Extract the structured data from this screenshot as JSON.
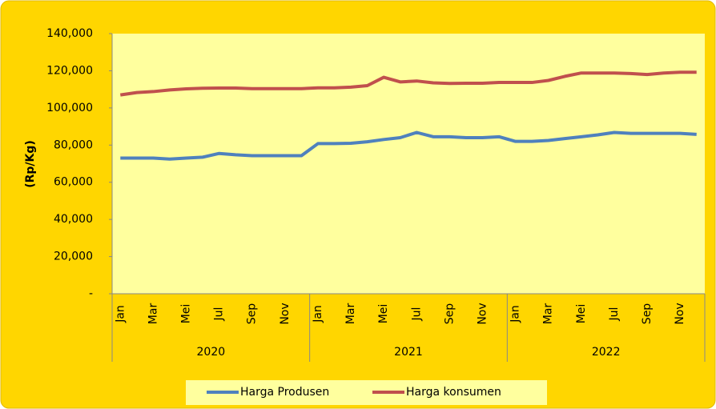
{
  "chart_data": {
    "type": "line",
    "ylabel": "(Rp/Kg)",
    "categories": [
      "Jan",
      null,
      "Mar",
      null,
      "Mei",
      null,
      "Jul",
      null,
      "Sep",
      null,
      "Nov",
      null,
      "Jan",
      null,
      "Mar",
      null,
      "Mei",
      null,
      "Jul",
      null,
      "Sep",
      null,
      "Nov",
      null,
      "Jan",
      null,
      "Mar",
      null,
      "Mei",
      null,
      "Jul",
      null,
      "Sep",
      null,
      "Nov",
      null
    ],
    "years": [
      "2020",
      "2021",
      "2022"
    ],
    "series": [
      {
        "name": "Harga Produsen",
        "color": "#4f81bd",
        "values": [
          73000,
          73000,
          73000,
          72500,
          73000,
          73500,
          75500,
          74800,
          74300,
          74300,
          74300,
          74300,
          80800,
          80800,
          81000,
          81800,
          83000,
          84000,
          86800,
          84500,
          84500,
          84000,
          84000,
          84500,
          82000,
          82000,
          82500,
          83500,
          84500,
          85500,
          86800,
          86300,
          86300,
          86300,
          86300,
          85800
        ]
      },
      {
        "name": "Harga konsumen",
        "color": "#c0504d",
        "values": [
          107000,
          108300,
          108800,
          109700,
          110300,
          110600,
          110700,
          110700,
          110400,
          110400,
          110400,
          110400,
          110800,
          110800,
          111200,
          112000,
          116500,
          114000,
          114500,
          113500,
          113200,
          113300,
          113300,
          113700,
          113700,
          113700,
          114800,
          117000,
          118800,
          118800,
          118800,
          118500,
          118000,
          118800,
          119200,
          119200
        ]
      }
    ],
    "ylim": [
      0,
      140000
    ],
    "yticks": [
      {
        "value": 0,
        "label": "-"
      },
      {
        "value": 20000,
        "label": "20,000"
      },
      {
        "value": 40000,
        "label": "40,000"
      },
      {
        "value": 60000,
        "label": "60,000"
      },
      {
        "value": 80000,
        "label": "80,000"
      },
      {
        "value": 100000,
        "label": "100,000"
      },
      {
        "value": 120000,
        "label": "120,000"
      },
      {
        "value": 140000,
        "label": "140,000"
      }
    ],
    "legend": "bottom"
  }
}
